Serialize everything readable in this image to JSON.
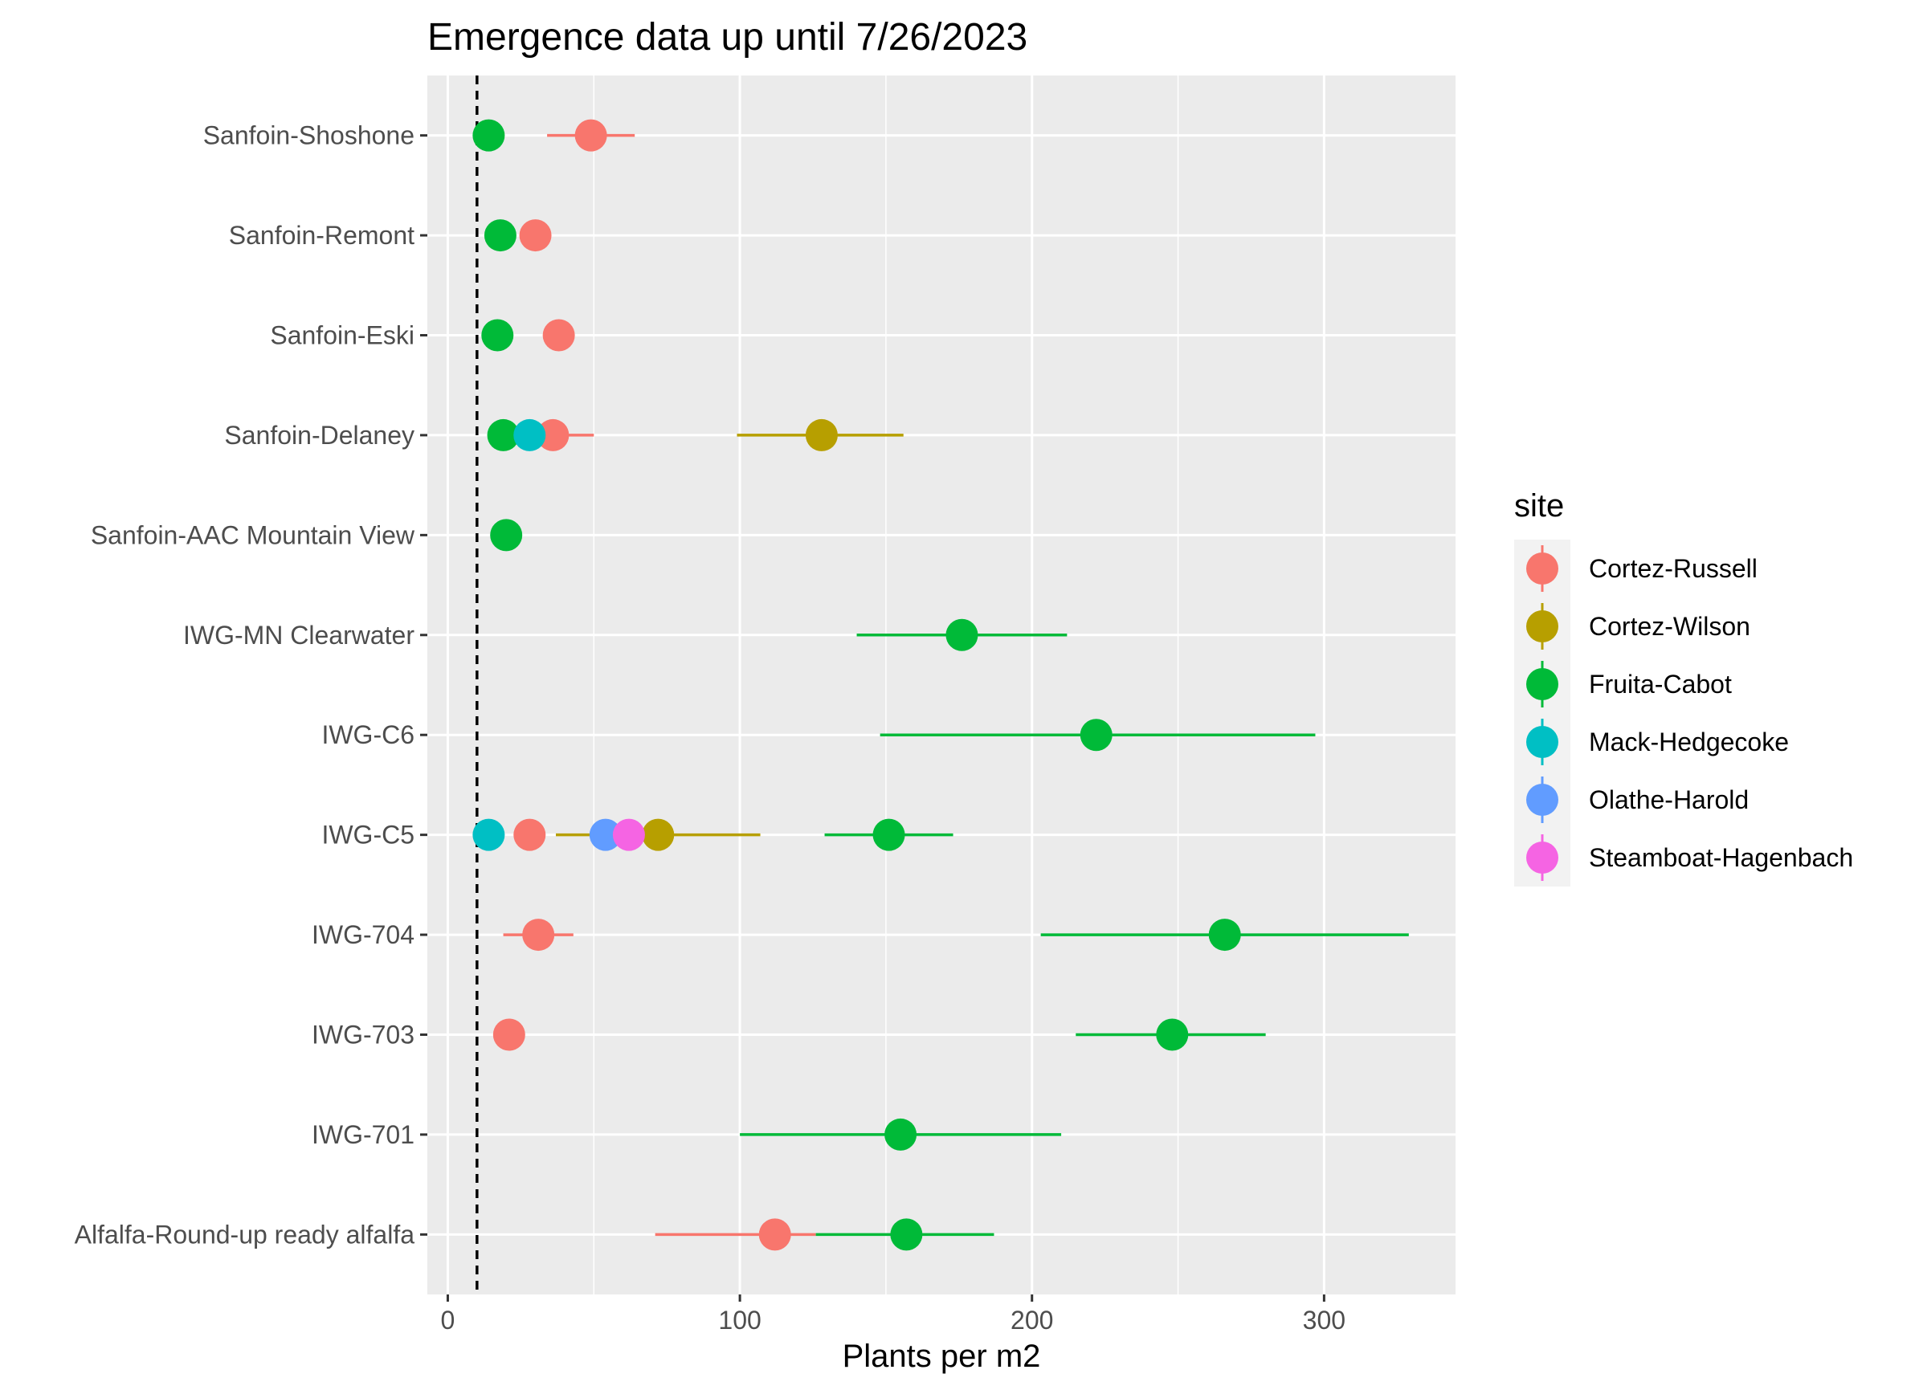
{
  "chart_data": {
    "type": "scatter",
    "title": "Emergence data up until 7/26/2023",
    "xlabel": "Plants per m2",
    "ylabel": "",
    "xlim": [
      -7,
      345
    ],
    "xticks": [
      0,
      100,
      200,
      300
    ],
    "reference_line": {
      "x": 10,
      "style": "dashed",
      "color": "#000000"
    },
    "grid": true,
    "legend": {
      "title": "site",
      "placement": "right"
    },
    "categories": [
      "Alfalfa-Round-up ready alfalfa",
      "IWG-701",
      "IWG-703",
      "IWG-704",
      "IWG-C5",
      "IWG-C6",
      "IWG-MN Clearwater",
      "Sanfoin-AAC Mountain View",
      "Sanfoin-Delaney",
      "Sanfoin-Eski",
      "Sanfoin-Remont",
      "Sanfoin-Shoshone"
    ],
    "series": [
      {
        "name": "Cortez-Russell",
        "color": "#F8766D",
        "points": [
          {
            "category": "Alfalfa-Round-up ready alfalfa",
            "x": 112,
            "low": 71,
            "high": 126
          },
          {
            "category": "IWG-703",
            "x": 21
          },
          {
            "category": "IWG-704",
            "x": 31,
            "low": 19,
            "high": 43
          },
          {
            "category": "IWG-C5",
            "x": 28
          },
          {
            "category": "Sanfoin-Delaney",
            "x": 36,
            "low": 24,
            "high": 50
          },
          {
            "category": "Sanfoin-Eski",
            "x": 38
          },
          {
            "category": "Sanfoin-Remont",
            "x": 30
          },
          {
            "category": "Sanfoin-Shoshone",
            "x": 49,
            "low": 34,
            "high": 64
          }
        ]
      },
      {
        "name": "Cortez-Wilson",
        "color": "#B79F00",
        "points": [
          {
            "category": "IWG-C5",
            "x": 72,
            "low": 37,
            "high": 107
          },
          {
            "category": "Sanfoin-Delaney",
            "x": 128,
            "low": 99,
            "high": 156
          }
        ]
      },
      {
        "name": "Fruita-Cabot",
        "color": "#00BA38",
        "points": [
          {
            "category": "Alfalfa-Round-up ready alfalfa",
            "x": 157,
            "low": 126,
            "high": 187
          },
          {
            "category": "IWG-701",
            "x": 155,
            "low": 100,
            "high": 210
          },
          {
            "category": "IWG-703",
            "x": 248,
            "low": 215,
            "high": 280
          },
          {
            "category": "IWG-704",
            "x": 266,
            "low": 203,
            "high": 329
          },
          {
            "category": "IWG-C5",
            "x": 151,
            "low": 129,
            "high": 173
          },
          {
            "category": "IWG-C6",
            "x": 222,
            "low": 148,
            "high": 297
          },
          {
            "category": "IWG-MN Clearwater",
            "x": 176,
            "low": 140,
            "high": 212
          },
          {
            "category": "Sanfoin-AAC Mountain View",
            "x": 20
          },
          {
            "category": "Sanfoin-Delaney",
            "x": 19
          },
          {
            "category": "Sanfoin-Eski",
            "x": 17
          },
          {
            "category": "Sanfoin-Remont",
            "x": 18
          },
          {
            "category": "Sanfoin-Shoshone",
            "x": 14
          }
        ]
      },
      {
        "name": "Mack-Hedgecoke",
        "color": "#00BFC4",
        "points": [
          {
            "category": "IWG-C5",
            "x": 14
          },
          {
            "category": "Sanfoin-Delaney",
            "x": 28
          }
        ]
      },
      {
        "name": "Olathe-Harold",
        "color": "#619CFF",
        "points": [
          {
            "category": "IWG-C5",
            "x": 54
          }
        ]
      },
      {
        "name": "Steamboat-Hagenbach",
        "color": "#F564E3",
        "points": [
          {
            "category": "IWG-C5",
            "x": 62
          }
        ]
      }
    ]
  }
}
